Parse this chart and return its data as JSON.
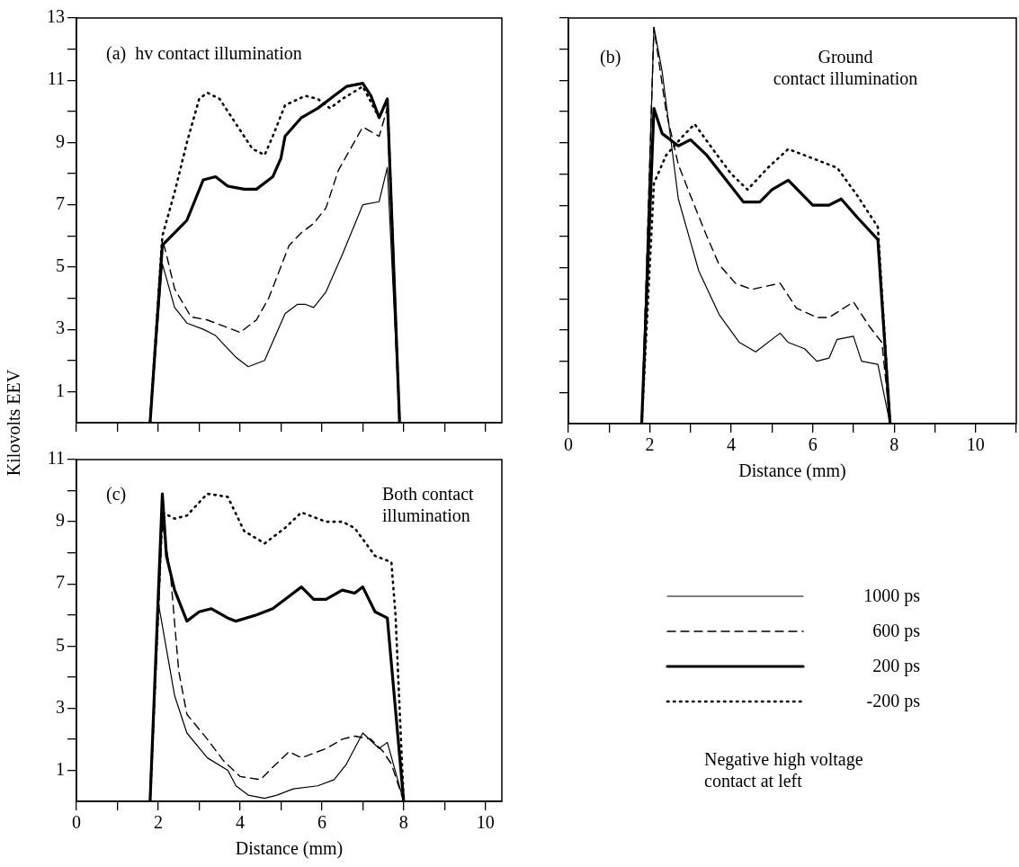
{
  "chart_data": [
    {
      "type": "line",
      "ylabel": "Kilovolts EEV",
      "annotations": [
        "(a)  hv contact illumination"
      ],
      "xlim": [
        0,
        10.4
      ],
      "ylim": [
        0,
        13
      ],
      "xticks": [
        {
          "value": 0,
          "label": null
        },
        {
          "value": 1,
          "label": null
        },
        {
          "value": 2,
          "label": null
        },
        {
          "value": 3,
          "label": null
        },
        {
          "value": 4,
          "label": null
        },
        {
          "value": 5,
          "label": null
        },
        {
          "value": 6,
          "label": null
        },
        {
          "value": 7,
          "label": null
        },
        {
          "value": 8,
          "label": null
        },
        {
          "value": 9,
          "label": null
        },
        {
          "value": 10,
          "label": null
        }
      ],
      "yticks": [
        1,
        {
          "value": 2,
          "label": null
        },
        3,
        {
          "value": 4,
          "label": null
        },
        5,
        {
          "value": 6,
          "label": null
        },
        7,
        {
          "value": 8,
          "label": null
        },
        9,
        {
          "value": 10,
          "label": null
        },
        11,
        {
          "value": 12,
          "label": null
        },
        13
      ],
      "tick_labels": "y",
      "series": [
        {
          "color": "#000000",
          "line_style": "solid",
          "x": [
            1.8,
            2.1,
            2.4,
            2.7,
            3.1,
            3.4,
            3.9,
            4.2,
            4.6,
            5.1,
            5.4,
            5.6,
            5.8,
            6.1,
            6.5,
            7.0,
            7.4,
            7.6,
            7.9
          ],
          "values": [
            0,
            5.1,
            3.7,
            3.2,
            3.0,
            2.8,
            2.1,
            1.8,
            2.0,
            3.5,
            3.8,
            3.8,
            3.7,
            4.2,
            5.4,
            7.0,
            7.1,
            8.2,
            0
          ]
        },
        {
          "color": "#000000",
          "line_style": "dashed",
          "x": [
            1.8,
            2.1,
            2.2,
            2.4,
            2.8,
            3.2,
            3.6,
            4.0,
            4.4,
            4.7,
            5.2,
            5.5,
            5.8,
            6.1,
            6.4,
            6.7,
            7.0,
            7.4,
            7.6,
            7.9
          ],
          "values": [
            0,
            5.9,
            5.4,
            4.3,
            3.4,
            3.3,
            3.1,
            2.9,
            3.3,
            4.0,
            5.7,
            6.1,
            6.4,
            6.9,
            8.1,
            8.8,
            9.5,
            9.2,
            10.1,
            0
          ]
        },
        {
          "color": "#000000",
          "line_style": "solid",
          "x": [
            1.8,
            2.1,
            2.4,
            2.7,
            3.1,
            3.4,
            3.7,
            4.1,
            4.4,
            4.8,
            5.0,
            5.1,
            5.5,
            5.9,
            6.3,
            6.6,
            7.0,
            7.2,
            7.4,
            7.6,
            7.9
          ],
          "values": [
            0,
            5.7,
            6.1,
            6.5,
            7.8,
            7.9,
            7.6,
            7.5,
            7.5,
            7.9,
            8.5,
            9.2,
            9.8,
            10.1,
            10.5,
            10.8,
            10.9,
            10.5,
            9.8,
            10.4,
            0
          ]
        },
        {
          "color": "#000000",
          "line_style": "dotted",
          "x": [
            1.8,
            2.1,
            2.4,
            2.7,
            3.0,
            3.2,
            3.5,
            3.9,
            4.3,
            4.6,
            4.8,
            5.1,
            5.6,
            5.9,
            6.2,
            6.5,
            7.0,
            7.4,
            7.6,
            7.9
          ],
          "values": [
            0,
            6.0,
            7.4,
            9.0,
            10.4,
            10.6,
            10.4,
            9.6,
            8.8,
            8.6,
            9.2,
            10.2,
            10.5,
            10.4,
            10.1,
            10.4,
            10.8,
            9.8,
            10.4,
            0
          ]
        }
      ]
    },
    {
      "type": "line",
      "xlabel": "Distance (mm)",
      "annotations": [
        "(b)",
        "Ground\ncontact illumination"
      ],
      "xlim": [
        0,
        11
      ],
      "ylim": [
        0,
        13
      ],
      "xticks": [
        0,
        {
          "value": 1,
          "label": null
        },
        2,
        {
          "value": 3,
          "label": null
        },
        4,
        {
          "value": 5,
          "label": null
        },
        6,
        {
          "value": 7,
          "label": null
        },
        8,
        {
          "value": 9,
          "label": null
        },
        10,
        {
          "value": 11,
          "label": null
        }
      ],
      "yticks": [
        {
          "value": 1,
          "label": null
        },
        {
          "value": 2,
          "label": null
        },
        {
          "value": 3,
          "label": null
        },
        {
          "value": 4,
          "label": null
        },
        {
          "value": 5,
          "label": null
        },
        {
          "value": 6,
          "label": null
        },
        {
          "value": 7,
          "label": null
        },
        {
          "value": 8,
          "label": null
        },
        {
          "value": 9,
          "label": null
        },
        {
          "value": 10,
          "label": null
        },
        {
          "value": 11,
          "label": null
        },
        {
          "value": 12,
          "label": null
        },
        {
          "value": 13,
          "label": null
        }
      ],
      "tick_labels": "x",
      "series": [
        {
          "color": "#000000",
          "line_style": "solid",
          "x": [
            1.8,
            2.1,
            2.3,
            2.7,
            3.2,
            3.7,
            4.2,
            4.6,
            5.2,
            5.4,
            5.8,
            6.1,
            6.4,
            6.6,
            7.0,
            7.2,
            7.6,
            7.9
          ],
          "values": [
            0,
            12.7,
            11.3,
            7.2,
            4.9,
            3.5,
            2.6,
            2.3,
            2.9,
            2.6,
            2.4,
            2.0,
            2.1,
            2.7,
            2.8,
            2.0,
            1.9,
            0
          ]
        },
        {
          "color": "#000000",
          "line_style": "dashed",
          "x": [
            1.8,
            2.1,
            2.4,
            2.7,
            3.0,
            3.4,
            3.7,
            4.1,
            4.5,
            5.2,
            5.6,
            6.1,
            6.4,
            7.0,
            7.4,
            7.7,
            7.9
          ],
          "values": [
            0,
            12.7,
            10.0,
            8.3,
            7.3,
            6.0,
            5.1,
            4.5,
            4.3,
            4.5,
            3.7,
            3.4,
            3.4,
            3.9,
            3.1,
            2.6,
            0
          ]
        },
        {
          "color": "#000000",
          "line_style": "solid",
          "x": [
            1.8,
            2.1,
            2.3,
            2.7,
            3.0,
            3.4,
            3.7,
            4.3,
            4.7,
            5.0,
            5.4,
            6.0,
            6.4,
            6.7,
            7.1,
            7.6,
            7.9
          ],
          "values": [
            0,
            10.1,
            9.3,
            8.9,
            9.1,
            8.6,
            8.1,
            7.1,
            7.1,
            7.5,
            7.8,
            7.0,
            7.0,
            7.2,
            6.6,
            5.9,
            0
          ]
        },
        {
          "color": "#000000",
          "line_style": "dotted",
          "x": [
            1.8,
            2.0,
            2.1,
            2.4,
            2.8,
            3.1,
            3.6,
            4.0,
            4.4,
            4.9,
            5.4,
            6.0,
            6.6,
            7.1,
            7.6,
            7.9
          ],
          "values": [
            0,
            5.1,
            7.7,
            8.6,
            9.2,
            9.6,
            8.7,
            8.0,
            7.5,
            8.2,
            8.8,
            8.5,
            8.2,
            7.3,
            6.3,
            0
          ]
        }
      ]
    },
    {
      "type": "line",
      "xlabel": "Distance (mm)",
      "annotations": [
        "(c)",
        "Both contact\nillumination",
        "Negative high voltage\ncontact at left"
      ],
      "legend": "right",
      "xlim": [
        0,
        10.4
      ],
      "ylim": [
        0,
        11
      ],
      "xticks": [
        0,
        {
          "value": 1,
          "label": null
        },
        2,
        {
          "value": 3,
          "label": null
        },
        4,
        {
          "value": 5,
          "label": null
        },
        6,
        {
          "value": 7,
          "label": null
        },
        8,
        {
          "value": 9,
          "label": null
        },
        10
      ],
      "yticks": [
        1,
        {
          "value": 2,
          "label": null
        },
        3,
        {
          "value": 4,
          "label": null
        },
        5,
        {
          "value": 6,
          "label": null
        },
        7,
        {
          "value": 8,
          "label": null
        },
        9,
        {
          "value": 10,
          "label": null
        },
        11
      ],
      "series": [
        {
          "name": "1000 ps",
          "color": "#000000",
          "line_style": "solid",
          "x": [
            1.8,
            2.0,
            2.2,
            2.4,
            2.7,
            3.2,
            3.7,
            3.9,
            4.2,
            4.6,
            4.9,
            5.3,
            5.9,
            6.3,
            6.6,
            7.0,
            7.4,
            7.6,
            8.0
          ],
          "values": [
            0,
            6.4,
            4.9,
            3.4,
            2.2,
            1.4,
            1.0,
            0.5,
            0.2,
            0.1,
            0.2,
            0.4,
            0.5,
            0.7,
            1.2,
            2.2,
            1.7,
            1.9,
            0
          ]
        },
        {
          "name": "600 ps",
          "color": "#000000",
          "line_style": "dashed",
          "x": [
            1.8,
            2.1,
            2.3,
            2.5,
            2.7,
            3.2,
            3.6,
            4.0,
            4.5,
            4.8,
            5.2,
            5.5,
            6.1,
            6.5,
            6.8,
            7.2,
            7.5,
            7.7,
            8.0
          ],
          "values": [
            0,
            9.0,
            7.3,
            4.2,
            2.8,
            2.0,
            1.3,
            0.8,
            0.7,
            1.1,
            1.6,
            1.4,
            1.7,
            2.0,
            2.1,
            2.0,
            1.6,
            1.2,
            0
          ]
        },
        {
          "name": "200 ps",
          "color": "#000000",
          "line_style": "solid",
          "x": [
            1.8,
            2.1,
            2.2,
            2.4,
            2.7,
            3.0,
            3.3,
            3.7,
            3.9,
            4.4,
            4.8,
            5.3,
            5.5,
            5.8,
            6.1,
            6.5,
            6.8,
            7.0,
            7.3,
            7.6,
            8.0
          ],
          "values": [
            0,
            9.9,
            7.9,
            6.8,
            5.8,
            6.1,
            6.2,
            5.9,
            5.8,
            6.0,
            6.2,
            6.7,
            6.9,
            6.5,
            6.5,
            6.8,
            6.7,
            6.9,
            6.1,
            5.9,
            0
          ]
        },
        {
          "name": "-200 ps",
          "color": "#000000",
          "line_style": "dotted",
          "x": [
            1.8,
            2.1,
            2.4,
            2.7,
            3.2,
            3.7,
            4.1,
            4.6,
            5.1,
            5.5,
            6.1,
            6.5,
            6.8,
            7.3,
            7.7,
            7.8,
            8.0
          ],
          "values": [
            0,
            9.3,
            9.1,
            9.2,
            9.9,
            9.8,
            8.7,
            8.3,
            8.8,
            9.3,
            9.0,
            9.0,
            8.8,
            7.9,
            7.7,
            6.0,
            0
          ]
        }
      ]
    }
  ]
}
